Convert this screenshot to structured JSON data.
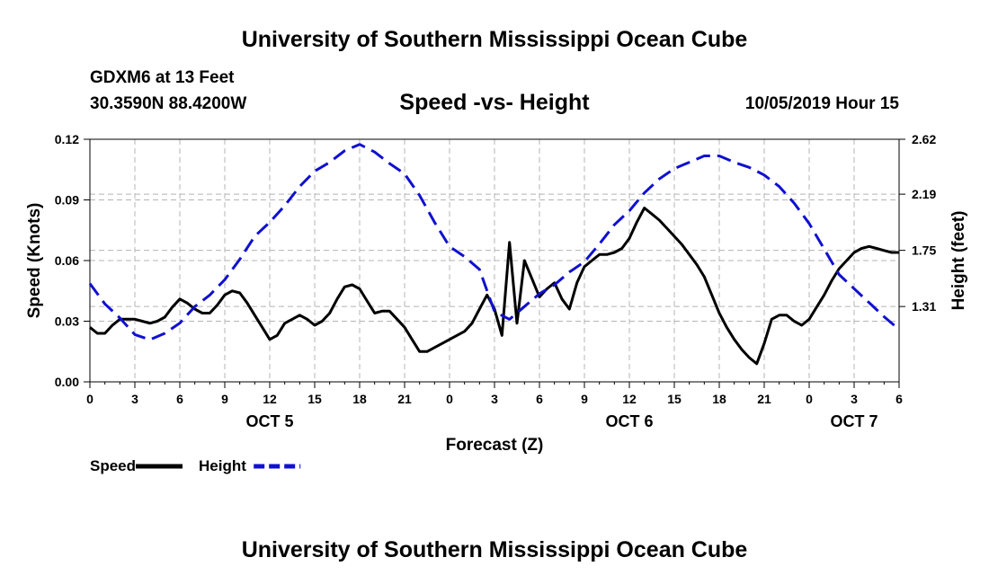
{
  "header": {
    "top_title": "University of Southern Mississippi Ocean Cube",
    "station": "GDXM6 at 13 Feet",
    "coords": "30.3590N 88.4200W",
    "timestamp": "10/05/2019 Hour 15",
    "bottom_title": "University of Southern Mississippi Ocean Cube"
  },
  "chart_data": {
    "type": "line",
    "title": "Speed -vs- Height",
    "xlabel": "Forecast (Z)",
    "ylabel": "Speed (Knots)",
    "y2label": "Height (feet)",
    "x_range": [
      0,
      54
    ],
    "ylim": [
      0,
      0.12
    ],
    "y2lim": [
      0.72,
      2.62
    ],
    "grid": true,
    "x_ticks": [
      {
        "x": 0,
        "label": "0"
      },
      {
        "x": 3,
        "label": "3"
      },
      {
        "x": 6,
        "label": "6"
      },
      {
        "x": 9,
        "label": "9"
      },
      {
        "x": 12,
        "label": "12"
      },
      {
        "x": 15,
        "label": "15"
      },
      {
        "x": 18,
        "label": "18"
      },
      {
        "x": 21,
        "label": "21"
      },
      {
        "x": 24,
        "label": "0"
      },
      {
        "x": 27,
        "label": "3"
      },
      {
        "x": 30,
        "label": "6"
      },
      {
        "x": 33,
        "label": "9"
      },
      {
        "x": 36,
        "label": "12"
      },
      {
        "x": 39,
        "label": "15"
      },
      {
        "x": 42,
        "label": "18"
      },
      {
        "x": 45,
        "label": "21"
      },
      {
        "x": 48,
        "label": "0"
      },
      {
        "x": 51,
        "label": "3"
      },
      {
        "x": 54,
        "label": "6"
      }
    ],
    "day_labels": [
      {
        "x": 12,
        "label": "OCT 5"
      },
      {
        "x": 36,
        "label": "OCT 6"
      },
      {
        "x": 51,
        "label": "OCT 7"
      }
    ],
    "y_ticks": [
      "0.00",
      "0.03",
      "0.06",
      "0.09",
      "0.12"
    ],
    "y_tick_values": [
      0,
      0.03,
      0.06,
      0.09,
      0.12
    ],
    "y2_ticks": [
      "1.31",
      "1.75",
      "2.19",
      "2.62"
    ],
    "y2_tick_values": [
      1.31,
      1.75,
      2.19,
      2.62
    ],
    "legend": [
      {
        "name": "Speed",
        "color": "#000000",
        "style": "solid"
      },
      {
        "name": "Height",
        "color": "#1010d0",
        "style": "dashed"
      }
    ],
    "series": [
      {
        "name": "Speed",
        "axis": "left",
        "color": "#000000",
        "x": [
          0,
          0.5,
          1,
          1.5,
          2,
          2.5,
          3,
          3.5,
          4,
          4.5,
          5,
          5.5,
          6,
          6.5,
          7,
          7.5,
          8,
          8.5,
          9,
          9.5,
          10,
          10.5,
          11,
          11.5,
          12,
          12.5,
          13,
          13.5,
          14,
          14.5,
          15,
          15.5,
          16,
          16.5,
          17,
          17.5,
          18,
          18.5,
          19,
          19.5,
          20,
          20.5,
          21,
          21.5,
          22,
          22.5,
          23,
          23.5,
          24,
          24.5,
          25,
          25.5,
          26,
          26.5,
          27,
          27.5,
          28,
          28.5,
          29,
          29.5,
          30,
          30.5,
          31,
          31.5,
          32,
          32.5,
          33,
          33.5,
          34,
          34.5,
          35,
          35.5,
          36,
          36.5,
          37,
          37.5,
          38,
          38.5,
          39,
          39.5,
          40,
          40.5,
          41,
          41.5,
          42,
          42.5,
          43,
          43.5,
          44,
          44.5,
          45,
          45.5,
          46,
          46.5,
          47,
          47.5,
          48,
          48.5,
          49,
          49.5,
          50,
          50.5,
          51,
          51.5,
          52,
          52.5,
          53,
          53.5,
          54
        ],
        "values": [
          0.027,
          0.024,
          0.024,
          0.028,
          0.031,
          0.031,
          0.031,
          0.03,
          0.029,
          0.03,
          0.032,
          0.037,
          0.041,
          0.039,
          0.036,
          0.034,
          0.034,
          0.038,
          0.043,
          0.045,
          0.044,
          0.039,
          0.033,
          0.027,
          0.021,
          0.023,
          0.029,
          0.031,
          0.033,
          0.031,
          0.028,
          0.03,
          0.034,
          0.041,
          0.047,
          0.048,
          0.046,
          0.04,
          0.034,
          0.035,
          0.035,
          0.031,
          0.027,
          0.021,
          0.015,
          0.015,
          0.017,
          0.019,
          0.021,
          0.023,
          0.025,
          0.029,
          0.036,
          0.043,
          0.036,
          0.023,
          0.069,
          0.029,
          0.06,
          0.051,
          0.042,
          0.046,
          0.049,
          0.041,
          0.036,
          0.049,
          0.057,
          0.06,
          0.063,
          0.063,
          0.064,
          0.066,
          0.071,
          0.079,
          0.086,
          0.083,
          0.08,
          0.076,
          0.072,
          0.068,
          0.063,
          0.058,
          0.052,
          0.043,
          0.034,
          0.027,
          0.021,
          0.016,
          0.012,
          0.009,
          0.019,
          0.031,
          0.033,
          0.033,
          0.03,
          0.028,
          0.031,
          0.037,
          0.043,
          0.05,
          0.056,
          0.06,
          0.064,
          0.066,
          0.067,
          0.066,
          0.065,
          0.064,
          0.064
        ]
      },
      {
        "name": "Height",
        "axis": "right",
        "color": "#1010d0",
        "x": [
          0,
          1,
          2,
          3,
          4,
          5,
          6,
          7,
          8,
          9,
          10,
          11,
          12,
          13,
          14,
          15,
          16,
          17,
          18,
          19,
          20,
          21,
          22,
          23,
          24,
          25,
          26,
          27,
          28,
          29,
          30,
          31,
          32,
          33,
          34,
          35,
          36,
          37,
          38,
          39,
          40,
          41,
          42,
          43,
          44,
          45,
          46,
          47,
          48,
          49,
          50,
          51,
          52,
          53,
          54
        ],
        "values": [
          1.49,
          1.33,
          1.22,
          1.09,
          1.05,
          1.1,
          1.18,
          1.31,
          1.4,
          1.52,
          1.68,
          1.86,
          1.97,
          2.1,
          2.25,
          2.37,
          2.44,
          2.53,
          2.58,
          2.52,
          2.43,
          2.35,
          2.18,
          1.97,
          1.78,
          1.7,
          1.6,
          1.27,
          1.21,
          1.31,
          1.41,
          1.48,
          1.58,
          1.66,
          1.8,
          1.95,
          2.06,
          2.2,
          2.31,
          2.39,
          2.44,
          2.49,
          2.49,
          2.44,
          2.4,
          2.34,
          2.25,
          2.12,
          1.96,
          1.76,
          1.56,
          1.45,
          1.34,
          1.23,
          1.13
        ]
      }
    ]
  }
}
